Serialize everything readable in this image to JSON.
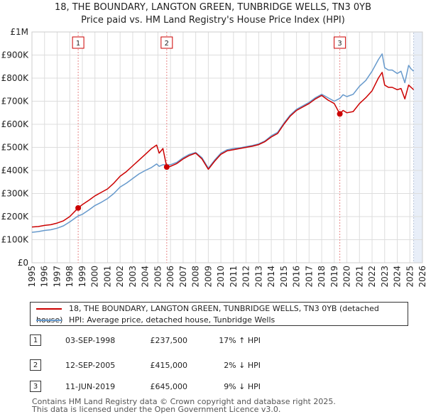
{
  "title_line1": "18, THE BOUNDARY, LANGTON GREEN, TUNBRIDGE WELLS, TN3 0YB",
  "title_line2": "Price paid vs. HM Land Registry's House Price Index (HPI)",
  "colors": {
    "property": "#cc0000",
    "hpi": "#6699cc",
    "grid": "#dddddd",
    "shade": "#e8eef8",
    "marker_line": "#e88888"
  },
  "chart_data": {
    "type": "line",
    "title": "Price paid vs. HM Land Registry's House Price Index (HPI)",
    "x_range": [
      1995,
      2026
    ],
    "ylim": [
      0,
      1000000
    ],
    "y_ticks": [
      0,
      100000,
      200000,
      300000,
      400000,
      500000,
      600000,
      700000,
      800000,
      900000,
      1000000
    ],
    "y_tick_labels": [
      "£0",
      "£100K",
      "£200K",
      "£300K",
      "£400K",
      "£500K",
      "£600K",
      "£700K",
      "£800K",
      "£900K",
      "£1M"
    ],
    "x_ticks": [
      1995,
      1996,
      1997,
      1998,
      1999,
      2000,
      2001,
      2002,
      2003,
      2004,
      2005,
      2006,
      2007,
      2008,
      2009,
      2010,
      2011,
      2012,
      2013,
      2014,
      2015,
      2016,
      2017,
      2018,
      2019,
      2020,
      2021,
      2022,
      2023,
      2024,
      2025,
      2026
    ],
    "x_tick_labels": [
      "1995",
      "1996",
      "1997",
      "1998",
      "1999",
      "2000",
      "2001",
      "2002",
      "2003",
      "2004",
      "2005",
      "2006",
      "2007",
      "2008",
      "2009",
      "2010",
      "2011",
      "2012",
      "2013",
      "2014",
      "2015",
      "2016",
      "2017",
      "2018",
      "2019",
      "2020",
      "2021",
      "2022",
      "2023",
      "2024",
      "2025",
      "2026"
    ],
    "grid": true,
    "series": [
      {
        "name": "18, THE BOUNDARY, LANGTON GREEN, TUNBRIDGE WELLS, TN3 0YB (detached house)",
        "color": "#cc0000",
        "x": [
          1995.0,
          1995.5,
          1996.0,
          1996.5,
          1997.0,
          1997.5,
          1998.0,
          1998.67,
          1999.0,
          1999.5,
          2000.0,
          2000.5,
          2001.0,
          2001.5,
          2002.0,
          2002.5,
          2003.0,
          2003.5,
          2004.0,
          2004.5,
          2004.9,
          2005.1,
          2005.4,
          2005.7,
          2006.0,
          2006.5,
          2007.0,
          2007.5,
          2008.0,
          2008.5,
          2009.0,
          2009.5,
          2010.0,
          2010.5,
          2011.0,
          2011.5,
          2012.0,
          2012.5,
          2013.0,
          2013.5,
          2014.0,
          2014.5,
          2015.0,
          2015.5,
          2016.0,
          2016.5,
          2017.0,
          2017.5,
          2018.0,
          2018.5,
          2019.0,
          2019.44,
          2019.7,
          2020.0,
          2020.5,
          2021.0,
          2021.5,
          2022.0,
          2022.5,
          2022.8,
          2023.0,
          2023.3,
          2023.6,
          2024.0,
          2024.3,
          2024.6,
          2024.9,
          2025.1,
          2025.3
        ],
        "values": [
          155000,
          157000,
          162000,
          165000,
          172000,
          182000,
          200000,
          237500,
          252000,
          270000,
          290000,
          305000,
          320000,
          345000,
          375000,
          395000,
          420000,
          445000,
          470000,
          495000,
          510000,
          475000,
          495000,
          415000,
          418000,
          430000,
          450000,
          465000,
          475000,
          450000,
          405000,
          440000,
          470000,
          485000,
          490000,
          495000,
          500000,
          505000,
          512000,
          525000,
          545000,
          560000,
          600000,
          635000,
          660000,
          675000,
          690000,
          710000,
          725000,
          705000,
          690000,
          645000,
          660000,
          650000,
          655000,
          690000,
          715000,
          745000,
          800000,
          825000,
          770000,
          760000,
          760000,
          750000,
          755000,
          710000,
          770000,
          760000,
          750000
        ]
      },
      {
        "name": "HPI: Average price, detached house, Tunbridge Wells",
        "color": "#6699cc",
        "x": [
          1995.0,
          1995.5,
          1996.0,
          1996.5,
          1997.0,
          1997.5,
          1998.0,
          1998.67,
          1999.0,
          1999.5,
          2000.0,
          2000.5,
          2001.0,
          2001.5,
          2002.0,
          2002.5,
          2003.0,
          2003.5,
          2004.0,
          2004.5,
          2004.9,
          2005.1,
          2005.4,
          2005.7,
          2006.0,
          2006.5,
          2007.0,
          2007.5,
          2008.0,
          2008.5,
          2009.0,
          2009.5,
          2010.0,
          2010.5,
          2011.0,
          2011.5,
          2012.0,
          2012.5,
          2013.0,
          2013.5,
          2014.0,
          2014.5,
          2015.0,
          2015.5,
          2016.0,
          2016.5,
          2017.0,
          2017.5,
          2018.0,
          2018.5,
          2019.0,
          2019.44,
          2019.7,
          2020.0,
          2020.5,
          2021.0,
          2021.5,
          2022.0,
          2022.5,
          2022.8,
          2023.0,
          2023.3,
          2023.6,
          2024.0,
          2024.3,
          2024.6,
          2024.9,
          2025.1,
          2025.3
        ],
        "values": [
          132000,
          135000,
          140000,
          143000,
          150000,
          160000,
          177000,
          203000,
          210000,
          228000,
          248000,
          262000,
          278000,
          300000,
          328000,
          345000,
          365000,
          385000,
          400000,
          413000,
          428000,
          418000,
          425000,
          423000,
          425000,
          435000,
          455000,
          470000,
          478000,
          455000,
          410000,
          445000,
          475000,
          490000,
          495000,
          498000,
          503000,
          508000,
          515000,
          528000,
          550000,
          565000,
          605000,
          640000,
          665000,
          680000,
          695000,
          715000,
          730000,
          715000,
          700000,
          712000,
          728000,
          720000,
          730000,
          765000,
          790000,
          830000,
          880000,
          905000,
          845000,
          835000,
          835000,
          820000,
          830000,
          780000,
          855000,
          840000,
          830000
        ]
      }
    ],
    "sales": [
      {
        "label": "1",
        "x": 1998.67,
        "value": 237500
      },
      {
        "label": "2",
        "x": 2005.7,
        "value": 415000
      },
      {
        "label": "3",
        "x": 2019.44,
        "value": 645000
      }
    ],
    "shaded_region": [
      2025.3,
      2026
    ]
  },
  "legend": {
    "property_label": "18, THE BOUNDARY, LANGTON GREEN, TUNBRIDGE WELLS, TN3 0YB (detached house)",
    "hpi_label": "HPI: Average price, detached house, Tunbridge Wells"
  },
  "sales_table": [
    {
      "num": "1",
      "date": "03-SEP-1998",
      "price": "£237,500",
      "hpi": "17% ↑ HPI"
    },
    {
      "num": "2",
      "date": "12-SEP-2005",
      "price": "£415,000",
      "hpi": "2% ↓ HPI"
    },
    {
      "num": "3",
      "date": "11-JUN-2019",
      "price": "£645,000",
      "hpi": "9% ↓ HPI"
    }
  ],
  "footer_line1": "Contains HM Land Registry data © Crown copyright and database right 2025.",
  "footer_line2": "This data is licensed under the Open Government Licence v3.0."
}
